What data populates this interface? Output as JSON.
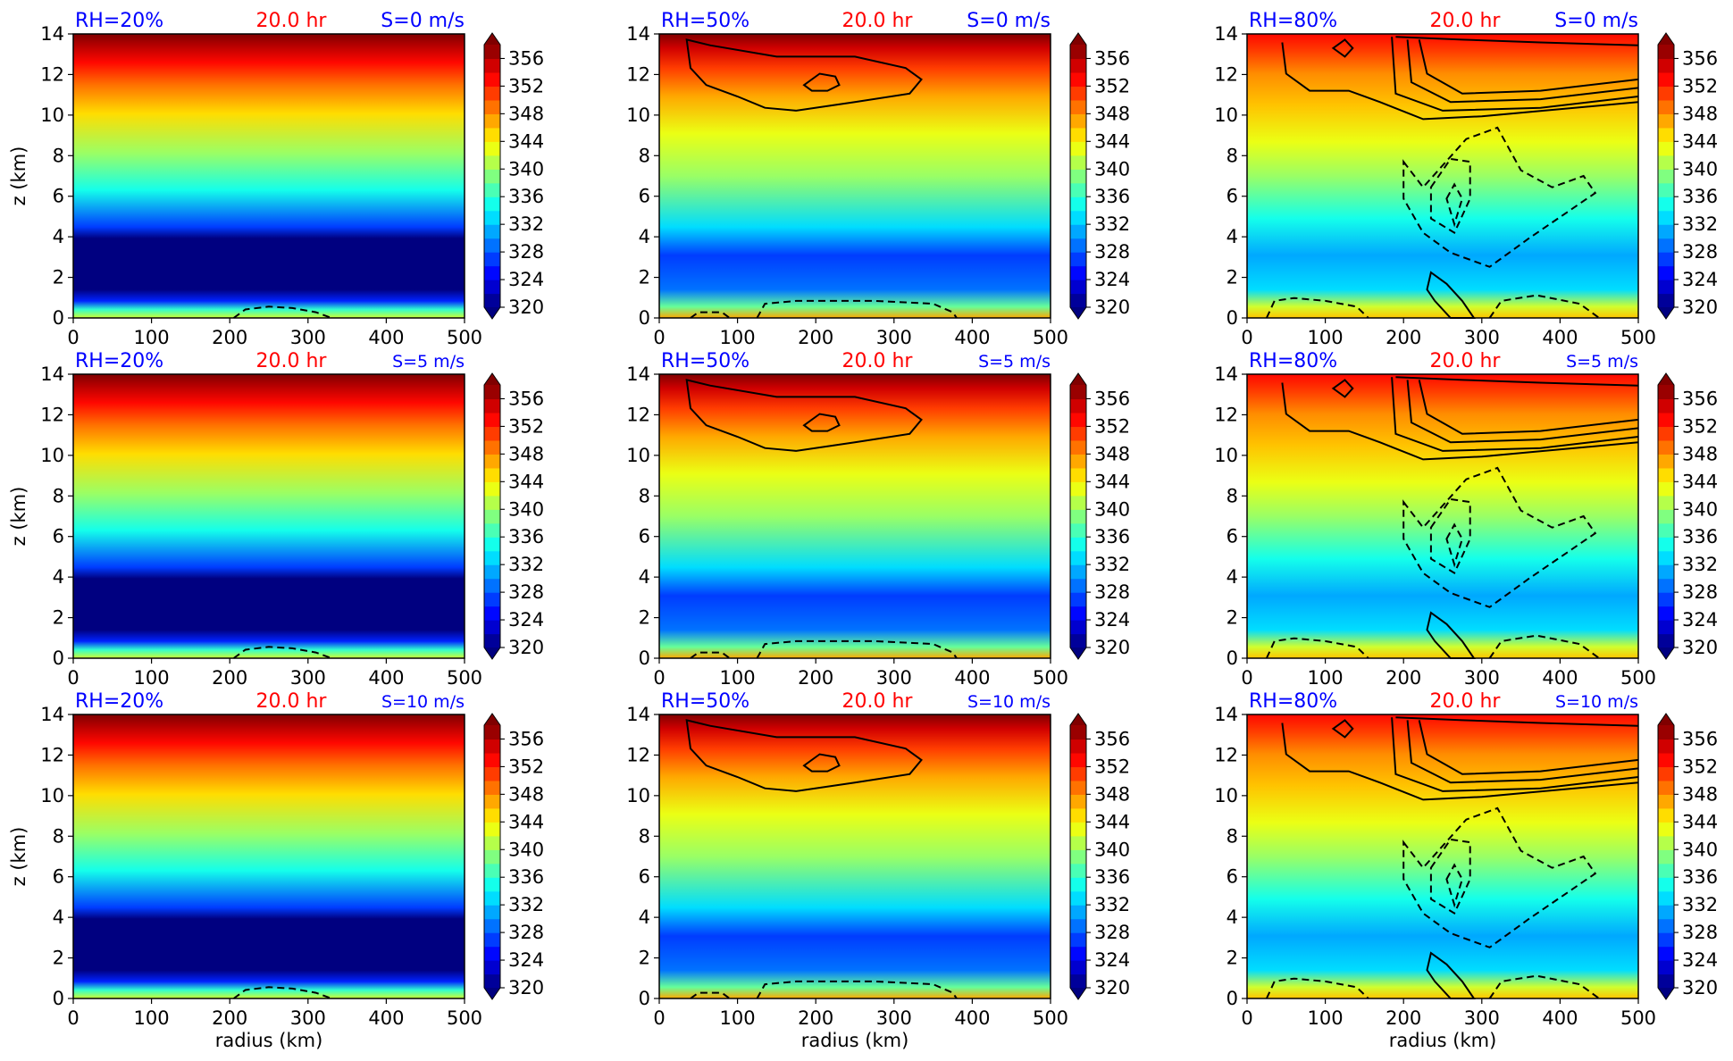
{
  "figure": {
    "rows": [
      {
        "shear_label": "S=0 m/s"
      },
      {
        "shear_label": "S=5 m/s"
      },
      {
        "shear_label": "S=10 m/s"
      }
    ],
    "columns": [
      {
        "rh_label": "RH=20%"
      },
      {
        "rh_label": "RH=50%"
      },
      {
        "rh_label": "RH=80%"
      }
    ],
    "time_label": "20.0 hr",
    "xlabel": "radius (km)",
    "ylabel": "z (km)",
    "colors": {
      "rh_label": "#0000ff",
      "time_label": "#ff0000",
      "shear_label": "#0000ff"
    }
  },
  "chart_data": {
    "type": "heatmap",
    "layout": "3x3 small multiples",
    "field": "filled contour with overlaid solid and dashed line contours",
    "x": {
      "label": "radius (km)",
      "range": [
        0,
        500
      ],
      "ticks": [
        0,
        100,
        200,
        300,
        400,
        500
      ]
    },
    "y": {
      "label": "z (km)",
      "range": [
        0,
        14
      ],
      "ticks": [
        0,
        2,
        4,
        6,
        8,
        10,
        12,
        14
      ]
    },
    "colorbar": {
      "colormap": "jet",
      "range": [
        320,
        358
      ],
      "ticks": [
        320,
        324,
        328,
        332,
        336,
        340,
        344,
        348,
        352,
        356
      ],
      "extend": "both"
    },
    "panels": [
      {
        "rh": "RH=20%",
        "time": "20.0 hr",
        "shear": "S=0 m/s",
        "row": 0,
        "col": 0
      },
      {
        "rh": "RH=50%",
        "time": "20.0 hr",
        "shear": "S=0 m/s",
        "row": 0,
        "col": 1
      },
      {
        "rh": "RH=80%",
        "time": "20.0 hr",
        "shear": "S=0 m/s",
        "row": 0,
        "col": 2
      },
      {
        "rh": "RH=20%",
        "time": "20.0 hr",
        "shear": "S=5 m/s",
        "row": 1,
        "col": 0
      },
      {
        "rh": "RH=50%",
        "time": "20.0 hr",
        "shear": "S=5 m/s",
        "row": 1,
        "col": 1
      },
      {
        "rh": "RH=80%",
        "time": "20.0 hr",
        "shear": "S=5 m/s",
        "row": 1,
        "col": 2
      },
      {
        "rh": "RH=20%",
        "time": "20.0 hr",
        "shear": "S=10 m/s",
        "row": 2,
        "col": 0
      },
      {
        "rh": "RH=50%",
        "time": "20.0 hr",
        "shear": "S=10 m/s",
        "row": 2,
        "col": 1
      },
      {
        "rh": "RH=80%",
        "time": "20.0 hr",
        "shear": "S=10 m/s",
        "row": 2,
        "col": 2
      }
    ]
  }
}
